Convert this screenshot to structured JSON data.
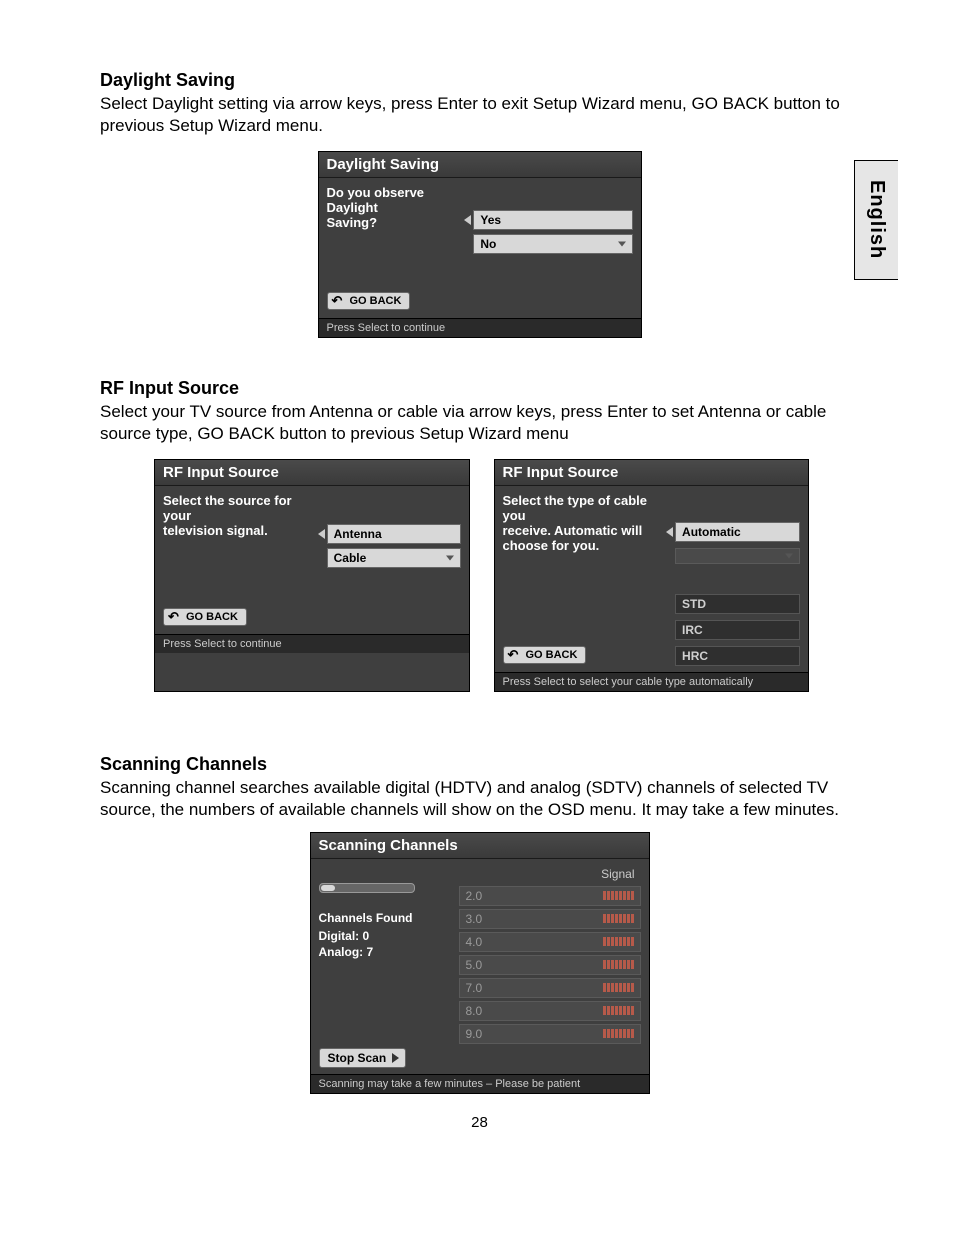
{
  "lang_tab": "English",
  "page_number": "28",
  "section1": {
    "heading": "Daylight Saving",
    "body": "Select Daylight setting via arrow keys, press Enter to exit Setup Wizard menu, GO BACK button to previous Setup Wizard menu."
  },
  "section2": {
    "heading": "RF Input Source",
    "body": "Select your TV source from Antenna or cable via arrow keys, press Enter to set Antenna or cable source type, GO BACK button to previous Setup Wizard menu"
  },
  "section3": {
    "heading": "Scanning Channels",
    "body": "Scanning channel searches available digital (HDTV) and analog (SDTV) channels of selected TV source, the numbers of available channels will show on the OSD menu. It may take a few minutes."
  },
  "daylight_panel": {
    "title": "Daylight Saving",
    "prompt_l1": "Do you observe Daylight",
    "prompt_l2": "Saving?",
    "opt_yes": "Yes",
    "opt_no": "No",
    "go_back": "GO BACK",
    "footer": "Press Select to continue"
  },
  "rf_panel_1": {
    "title": "RF Input Source",
    "prompt_l1": "Select the source for your",
    "prompt_l2": "television signal.",
    "opt_antenna": "Antenna",
    "opt_cable": "Cable",
    "go_back": "GO BACK",
    "footer": "Press Select to continue"
  },
  "rf_panel_2": {
    "title": "RF Input Source",
    "prompt_l1": "Select the type of cable you",
    "prompt_l2": "receive.  Automatic will",
    "prompt_l3": "choose for you.",
    "opt_auto": "Automatic",
    "opt_std": "STD",
    "opt_irc": "IRC",
    "opt_hrc": "HRC",
    "go_back": "GO BACK",
    "footer": "Press Select to select your cable type automatically"
  },
  "scan_panel": {
    "title": "Scanning Channels",
    "channels_found": "Channels Found",
    "digital": "Digital: 0",
    "analog": "Analog: 7",
    "signal": "Signal",
    "rows": [
      "2.0",
      "3.0",
      "4.0",
      "5.0",
      "7.0",
      "8.0",
      "9.0"
    ],
    "signal_segments": 8,
    "signal_color": "#b65a4a",
    "stop_scan": "Stop Scan",
    "footer": "Scanning may take a few minutes – Please be patient"
  }
}
